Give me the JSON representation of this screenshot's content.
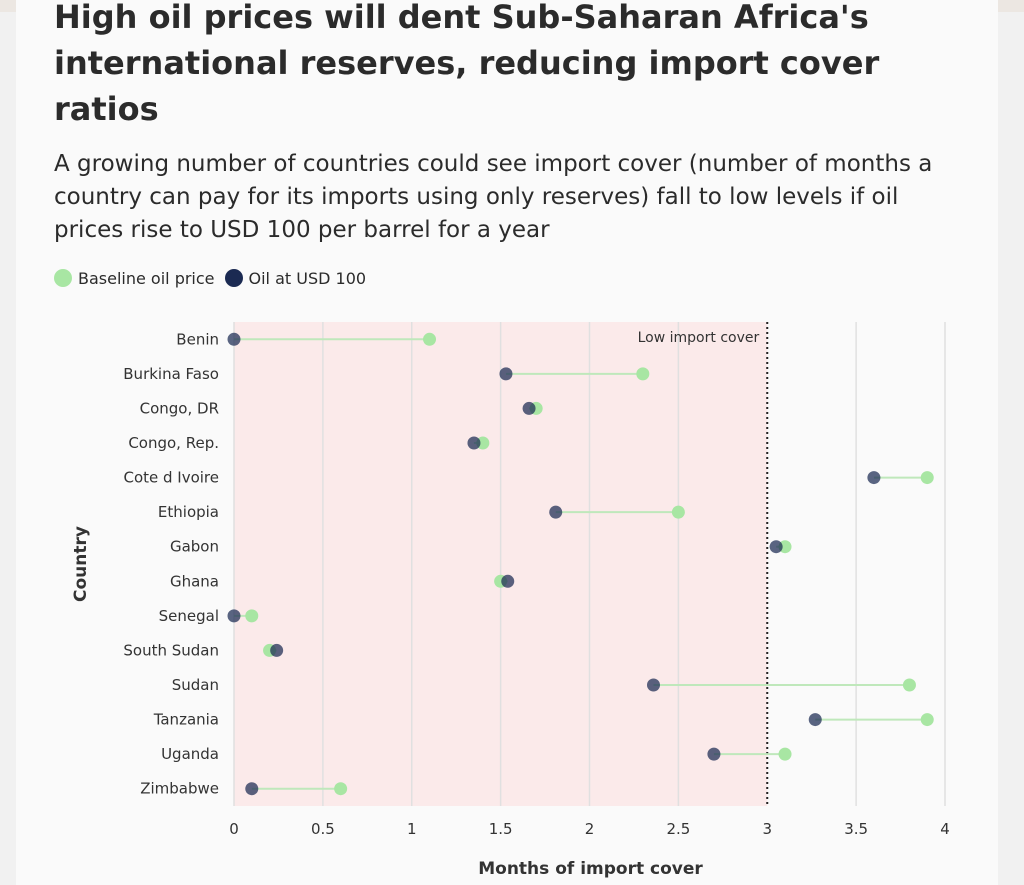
{
  "header": {
    "title": "High oil prices will dent Sub-Saharan Africa's international reserves, reducing import cover ratios",
    "subtitle": "A growing number of countries could see import cover (number of months a country can pay for its imports using only reserves) fall to low levels if oil prices rise to USD 100 per barrel for a year"
  },
  "colors": {
    "baseline": "#a8e6a3",
    "oil100": "#1b2a52",
    "connector": "#bfe8bb",
    "shade": "#fbeaea",
    "grid": "#e0e0e0"
  },
  "chart_data": {
    "type": "dumbbell",
    "xlabel": "Months of import cover",
    "ylabel": "Country",
    "xlim": [
      0,
      4
    ],
    "xticks": [
      0,
      0.5,
      1,
      1.5,
      2,
      2.5,
      3,
      3.5,
      4
    ],
    "xtick_labels": [
      "0",
      "0.5",
      "1",
      "1.5",
      "2",
      "2.5",
      "3",
      "3.5",
      "4"
    ],
    "legend_position": "top-left",
    "threshold": {
      "value": 3,
      "label": "Low import cover",
      "shaded_region": [
        0,
        3
      ]
    },
    "categories": [
      "Benin",
      "Burkina Faso",
      "Congo, DR",
      "Congo, Rep.",
      "Cote d Ivoire",
      "Ethiopia",
      "Gabon",
      "Ghana",
      "Senegal",
      "South Sudan",
      "Sudan",
      "Tanzania",
      "Uganda",
      "Zimbabwe"
    ],
    "series": [
      {
        "name": "Baseline oil price",
        "values": [
          1.1,
          2.3,
          1.7,
          1.4,
          3.9,
          2.5,
          3.1,
          1.5,
          0.1,
          0.2,
          3.8,
          3.9,
          3.1,
          0.6
        ]
      },
      {
        "name": "Oil at USD 100",
        "values": [
          0.0,
          1.53,
          1.66,
          1.35,
          3.6,
          1.81,
          3.05,
          1.54,
          0.0,
          0.24,
          2.36,
          3.27,
          2.7,
          0.1
        ]
      }
    ]
  }
}
